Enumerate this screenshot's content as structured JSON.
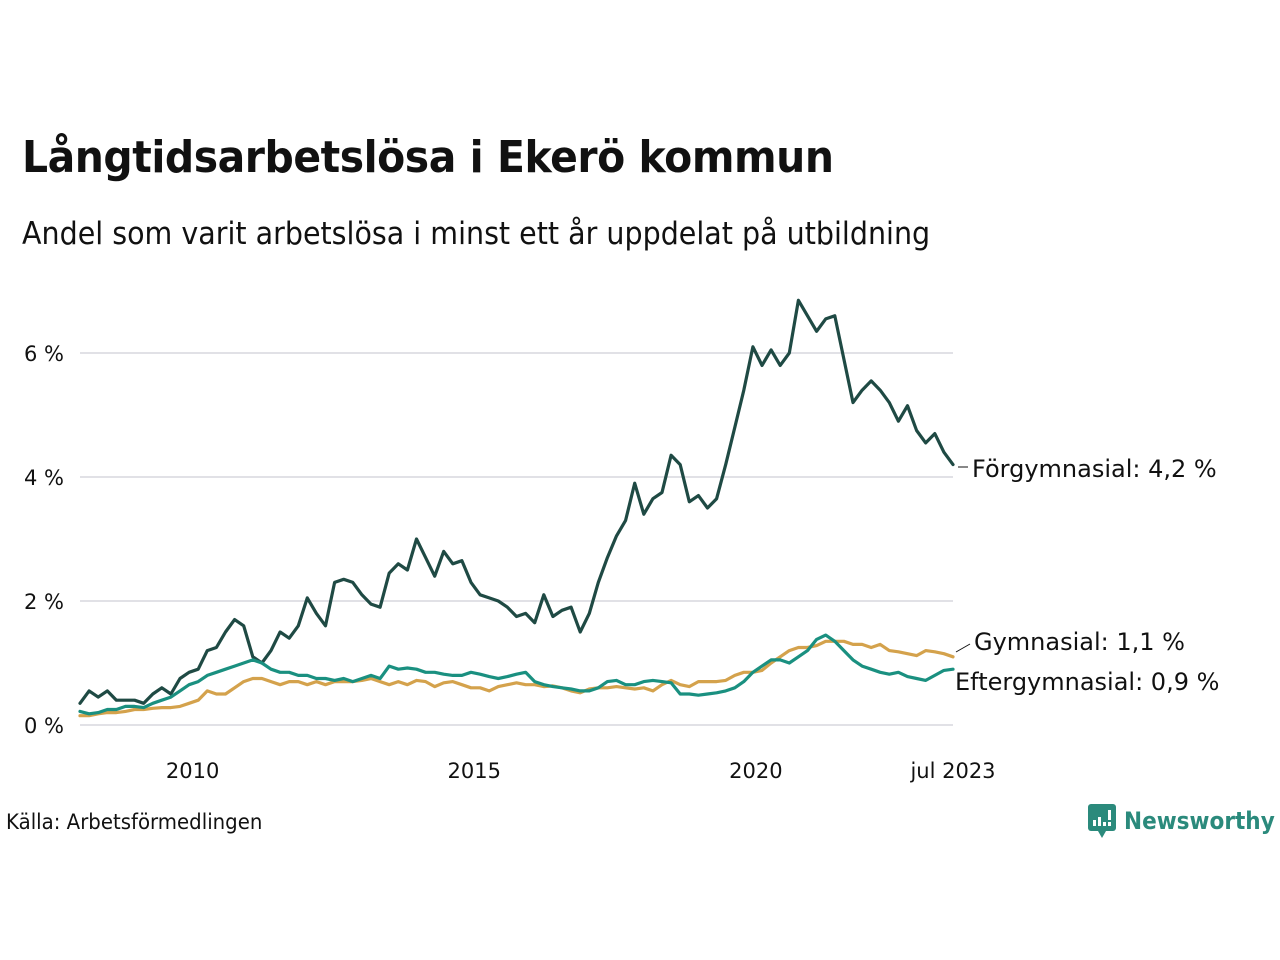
{
  "title": "Långtidsarbetslösa i Ekerö kommun",
  "subtitle": "Andel som varit arbetslösa i minst ett år uppdelat på utbildning",
  "source": "Källa: Arbetsförmedlingen",
  "logo_text": "Newsworthy",
  "chart_data": {
    "type": "line",
    "title": "Långtidsarbetslösa i Ekerö kommun",
    "xlabel": "",
    "ylabel": "",
    "x_start": "2008-01",
    "x_end": "2023-07",
    "x_step_months": 2,
    "ylim": [
      0,
      7
    ],
    "y_ticks": [
      0,
      2,
      4,
      6
    ],
    "y_tick_labels": [
      "0 %",
      "2 %",
      "4 %",
      "6 %"
    ],
    "x_ticks": [
      2010,
      2015,
      2020,
      2023.5
    ],
    "x_tick_labels": [
      "2010",
      "2015",
      "2020",
      "jul 2023"
    ],
    "grid": true,
    "legend": "direct-labels-right",
    "series": [
      {
        "name": "Förgymnasial",
        "end_label": "Förgymnasial: 4,2 %",
        "color": "#1f4a44",
        "values": [
          0.35,
          0.55,
          0.45,
          0.55,
          0.4,
          0.4,
          0.4,
          0.35,
          0.5,
          0.6,
          0.5,
          0.75,
          0.85,
          0.9,
          1.2,
          1.25,
          1.5,
          1.7,
          1.6,
          1.1,
          1.0,
          1.2,
          1.5,
          1.4,
          1.6,
          2.05,
          1.8,
          1.6,
          2.3,
          2.35,
          2.3,
          2.1,
          1.95,
          1.9,
          2.45,
          2.6,
          2.5,
          3.0,
          2.7,
          2.4,
          2.8,
          2.6,
          2.65,
          2.3,
          2.1,
          2.05,
          2.0,
          1.9,
          1.75,
          1.8,
          1.65,
          2.1,
          1.75,
          1.85,
          1.9,
          1.5,
          1.8,
          2.3,
          2.7,
          3.05,
          3.3,
          3.9,
          3.4,
          3.65,
          3.75,
          4.35,
          4.2,
          3.6,
          3.7,
          3.5,
          3.65,
          4.2,
          4.8,
          5.4,
          6.1,
          5.8,
          6.05,
          5.8,
          6.0,
          6.85,
          6.6,
          6.35,
          6.55,
          6.6,
          5.9,
          5.2,
          5.4,
          5.55,
          5.4,
          5.2,
          4.9,
          5.15,
          4.75,
          4.55,
          4.7,
          4.4,
          4.2
        ]
      },
      {
        "name": "Gymnasial",
        "end_label": "Gymnasial: 1,1 %",
        "color": "#d4a24c",
        "values": [
          0.15,
          0.15,
          0.18,
          0.2,
          0.2,
          0.22,
          0.25,
          0.25,
          0.27,
          0.28,
          0.28,
          0.3,
          0.35,
          0.4,
          0.55,
          0.5,
          0.5,
          0.6,
          0.7,
          0.75,
          0.75,
          0.7,
          0.65,
          0.7,
          0.7,
          0.65,
          0.7,
          0.65,
          0.7,
          0.7,
          0.7,
          0.72,
          0.75,
          0.7,
          0.65,
          0.7,
          0.65,
          0.72,
          0.7,
          0.62,
          0.68,
          0.7,
          0.65,
          0.6,
          0.6,
          0.55,
          0.62,
          0.65,
          0.68,
          0.65,
          0.65,
          0.62,
          0.63,
          0.6,
          0.55,
          0.52,
          0.58,
          0.6,
          0.6,
          0.62,
          0.6,
          0.58,
          0.6,
          0.55,
          0.65,
          0.72,
          0.65,
          0.62,
          0.7,
          0.7,
          0.7,
          0.72,
          0.8,
          0.85,
          0.85,
          0.88,
          1.0,
          1.1,
          1.2,
          1.25,
          1.25,
          1.28,
          1.35,
          1.35,
          1.35,
          1.3,
          1.3,
          1.25,
          1.3,
          1.2,
          1.18,
          1.15,
          1.12,
          1.2,
          1.18,
          1.15,
          1.1
        ]
      },
      {
        "name": "Eftergymnasial",
        "end_label": "Eftergymnasial: 0,9 %",
        "color": "#1a9080",
        "values": [
          0.22,
          0.18,
          0.2,
          0.25,
          0.25,
          0.3,
          0.3,
          0.28,
          0.35,
          0.4,
          0.45,
          0.55,
          0.65,
          0.7,
          0.8,
          0.85,
          0.9,
          0.95,
          1.0,
          1.05,
          1.0,
          0.9,
          0.85,
          0.85,
          0.8,
          0.8,
          0.75,
          0.75,
          0.72,
          0.75,
          0.7,
          0.75,
          0.8,
          0.75,
          0.95,
          0.9,
          0.92,
          0.9,
          0.85,
          0.85,
          0.82,
          0.8,
          0.8,
          0.85,
          0.82,
          0.78,
          0.75,
          0.78,
          0.82,
          0.85,
          0.7,
          0.65,
          0.62,
          0.6,
          0.58,
          0.55,
          0.55,
          0.6,
          0.7,
          0.72,
          0.65,
          0.65,
          0.7,
          0.72,
          0.7,
          0.68,
          0.5,
          0.5,
          0.48,
          0.5,
          0.52,
          0.55,
          0.6,
          0.7,
          0.85,
          0.95,
          1.05,
          1.05,
          1.0,
          1.1,
          1.2,
          1.38,
          1.45,
          1.35,
          1.2,
          1.05,
          0.95,
          0.9,
          0.85,
          0.82,
          0.85,
          0.78,
          0.75,
          0.72,
          0.8,
          0.88,
          0.9
        ]
      }
    ]
  }
}
